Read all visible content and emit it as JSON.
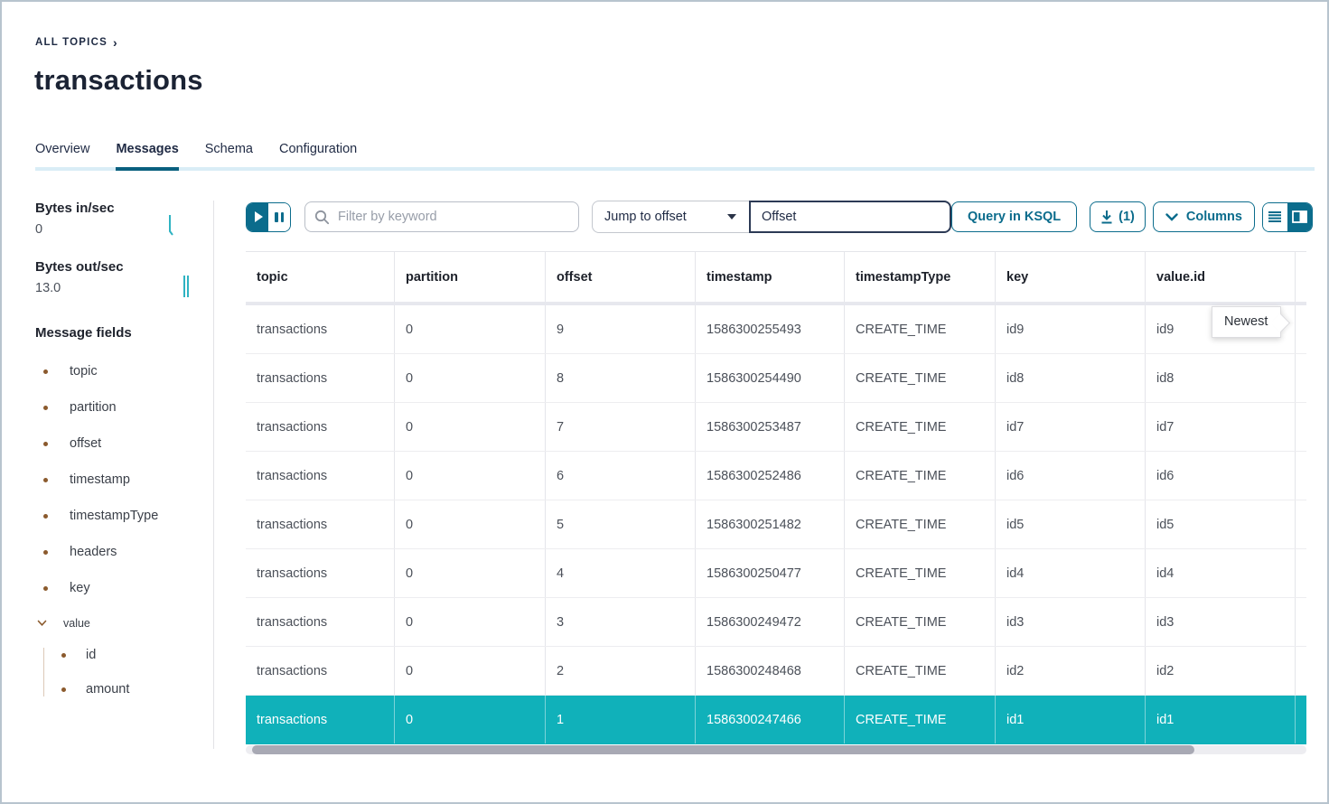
{
  "header": {
    "breadcrumb": "ALL TOPICS",
    "breadcrumb_chevron": "›",
    "title": "transactions"
  },
  "tabs": [
    {
      "label": "Overview",
      "active": false
    },
    {
      "label": "Messages",
      "active": true
    },
    {
      "label": "Schema",
      "active": false
    },
    {
      "label": "Configuration",
      "active": false
    }
  ],
  "sidebar": {
    "metrics": [
      {
        "label": "Bytes in/sec",
        "value": "0"
      },
      {
        "label": "Bytes out/sec",
        "value": "13.0"
      }
    ],
    "fields_title": "Message fields",
    "fields": [
      "topic",
      "partition",
      "offset",
      "timestamp",
      "timestampType",
      "headers",
      "key"
    ],
    "value_group": {
      "label": "value",
      "children": [
        "id",
        "amount"
      ]
    }
  },
  "toolbar": {
    "search_placeholder": "Filter by keyword",
    "jump_select_value": "Jump to offset",
    "offset_input_value": "Offset",
    "ksql_button": "Query in KSQL",
    "download_count": "(1)",
    "columns_button": "Columns"
  },
  "table": {
    "columns": [
      "topic",
      "partition",
      "offset",
      "timestamp",
      "timestampType",
      "key",
      "value.id"
    ],
    "rows": [
      [
        "transactions",
        "0",
        "9",
        "1586300255493",
        "CREATE_TIME",
        "id9",
        "id9"
      ],
      [
        "transactions",
        "0",
        "8",
        "1586300254490",
        "CREATE_TIME",
        "id8",
        "id8"
      ],
      [
        "transactions",
        "0",
        "7",
        "1586300253487",
        "CREATE_TIME",
        "id7",
        "id7"
      ],
      [
        "transactions",
        "0",
        "6",
        "1586300252486",
        "CREATE_TIME",
        "id6",
        "id6"
      ],
      [
        "transactions",
        "0",
        "5",
        "1586300251482",
        "CREATE_TIME",
        "id5",
        "id5"
      ],
      [
        "transactions",
        "0",
        "4",
        "1586300250477",
        "CREATE_TIME",
        "id4",
        "id4"
      ],
      [
        "transactions",
        "0",
        "3",
        "1586300249472",
        "CREATE_TIME",
        "id3",
        "id3"
      ],
      [
        "transactions",
        "0",
        "2",
        "1586300248468",
        "CREATE_TIME",
        "id2",
        "id2"
      ],
      [
        "transactions",
        "0",
        "1",
        "1586300247466",
        "CREATE_TIME",
        "id1",
        "id1"
      ]
    ],
    "highlighted_row_index": 8
  },
  "tooltip": {
    "label": "Newest"
  },
  "colors": {
    "accent": "#0b6c8c",
    "accent_dark": "#0a607f",
    "tab_track": "#d9edf6",
    "highlight_row": "#10b1ba",
    "bullet": "#8b5a2d",
    "sparkline": "#2fb3c2"
  }
}
